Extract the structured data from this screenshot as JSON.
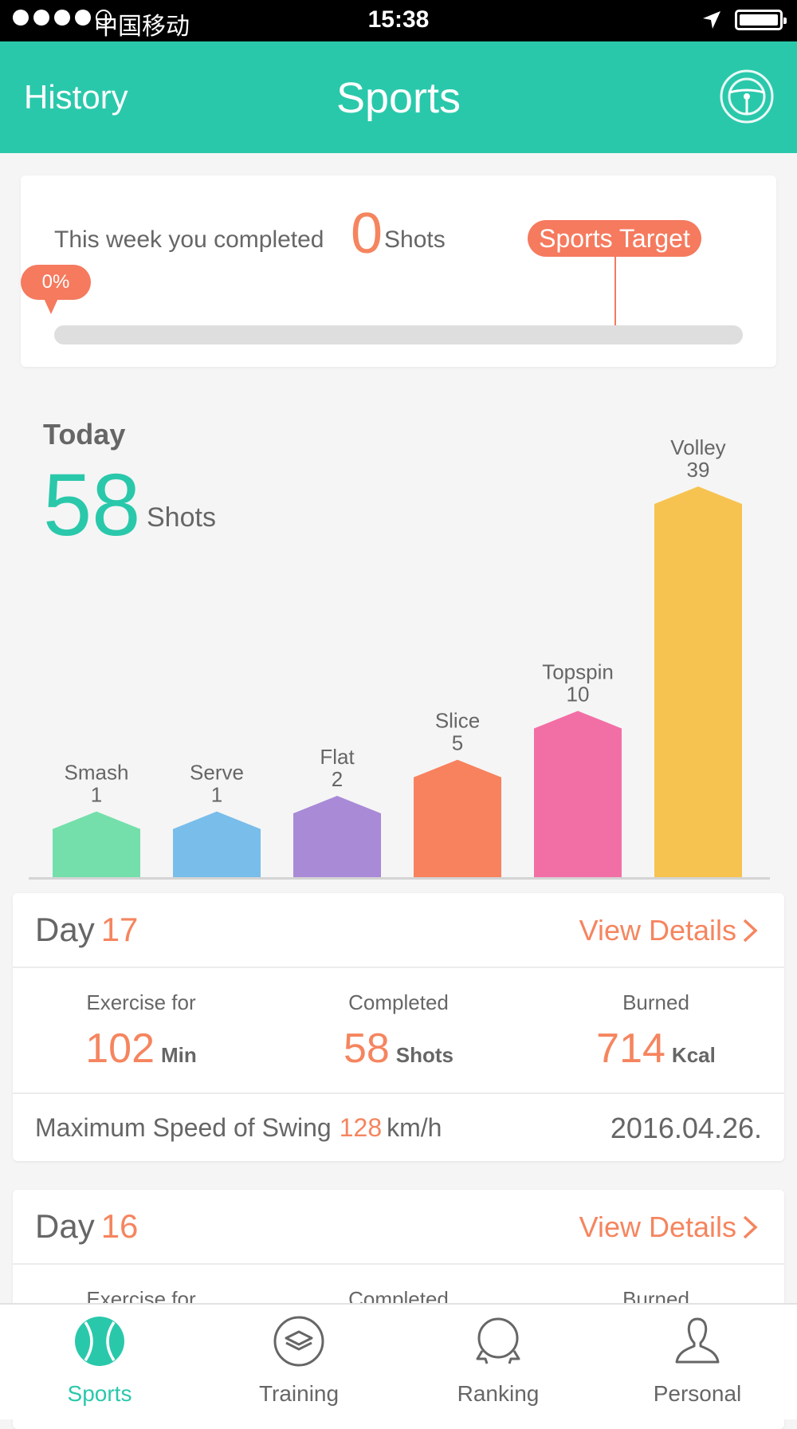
{
  "status_bar": {
    "carrier": "中国移动",
    "time": "15:38",
    "signal_bars": 4,
    "icons": [
      "location-arrow-icon",
      "battery-icon"
    ]
  },
  "header": {
    "left_label": "History",
    "title": "Sports",
    "right_icon": "steering-wheel-icon",
    "color": "#2ac8ab"
  },
  "week_summary": {
    "prefix": "This week you completed",
    "count": "0",
    "unit": "Shots",
    "target_label": "Sports Target",
    "progress_label": "0%",
    "progress": 0,
    "accent": "#f57a5e"
  },
  "today": {
    "label": "Today",
    "count": "58",
    "unit": "Shots"
  },
  "chart_data": {
    "type": "bar",
    "categories": [
      "Smash",
      "Serve",
      "Flat",
      "Slice",
      "Topspin",
      "Volley"
    ],
    "values": [
      1,
      1,
      2,
      5,
      10,
      39
    ],
    "colors": [
      "#74dfaa",
      "#79bdea",
      "#a98ad7",
      "#f8825e",
      "#f26fa6",
      "#f7c350"
    ],
    "title": "",
    "xlabel": "",
    "ylabel": ""
  },
  "days": [
    {
      "prefix": "Day",
      "number": "17",
      "view_label": "View Details",
      "stats": [
        {
          "label": "Exercise for",
          "value": "102",
          "unit": "Min"
        },
        {
          "label": "Completed",
          "value": "58",
          "unit": "Shots"
        },
        {
          "label": "Burned",
          "value": "714",
          "unit": "Kcal"
        }
      ],
      "speed_label": "Maximum Speed of Swing",
      "speed_value": "128",
      "speed_unit": "km/h",
      "date": "2016.04.26."
    },
    {
      "prefix": "Day",
      "number": "16",
      "view_label": "View Details",
      "stats": [
        {
          "label": "Exercise for"
        },
        {
          "label": "Completed"
        },
        {
          "label": "Burned"
        }
      ]
    }
  ],
  "nav": [
    {
      "label": "Sports",
      "icon": "tennis-ball-icon",
      "active": true
    },
    {
      "label": "Training",
      "icon": "layers-icon",
      "active": false
    },
    {
      "label": "Ranking",
      "icon": "ranking-icon",
      "active": false
    },
    {
      "label": "Personal",
      "icon": "person-icon",
      "active": false
    }
  ]
}
